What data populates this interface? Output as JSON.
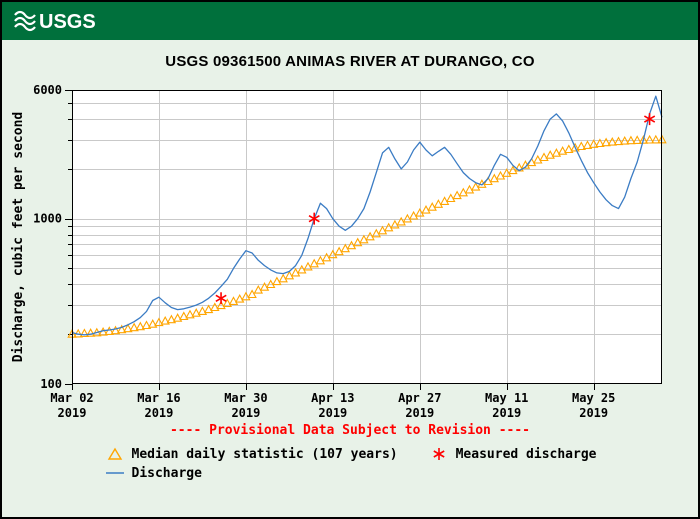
{
  "page": {
    "background_color": "#e8f2e8",
    "header": {
      "background_color": "#00703c",
      "logo_text": "USGS"
    },
    "title": "USGS 09361500 ANIMAS RIVER AT DURANGO, CO",
    "provisional_notice": "---- Provisional Data Subject to Revision ----",
    "provisional_color": "#ff0000"
  },
  "legend": {
    "items": [
      {
        "icon": "triangle",
        "color": "#ffa500",
        "label": "Median daily statistic (107 years)"
      },
      {
        "icon": "asterisk",
        "color": "#ff0000",
        "label": "Measured discharge"
      },
      {
        "icon": "line",
        "color": "#3b7cc4",
        "label": "Discharge"
      }
    ]
  },
  "chart_data": {
    "type": "line",
    "title": "USGS 09361500 ANIMAS RIVER AT DURANGO, CO",
    "ylabel": "Discharge, cubic feet per second",
    "xlabel": "",
    "y_scale": "log",
    "ylim": [
      100,
      6000
    ],
    "y_major_ticks": [
      100,
      1000,
      6000
    ],
    "y_minor_ticks": [
      200,
      300,
      400,
      500,
      600,
      700,
      800,
      900,
      2000,
      3000,
      4000,
      5000
    ],
    "x_range_days": [
      0,
      95
    ],
    "x_ticks": [
      {
        "day": 0,
        "label": "Mar 02",
        "year": "2019"
      },
      {
        "day": 14,
        "label": "Mar 16",
        "year": "2019"
      },
      {
        "day": 28,
        "label": "Mar 30",
        "year": "2019"
      },
      {
        "day": 42,
        "label": "Apr 13",
        "year": "2019"
      },
      {
        "day": 56,
        "label": "Apr 27",
        "year": "2019"
      },
      {
        "day": 70,
        "label": "May 11",
        "year": "2019"
      },
      {
        "day": 84,
        "label": "May 25",
        "year": "2019"
      }
    ],
    "grid_color": "#c9c9c9",
    "plot_background": "#ffffff",
    "series": [
      {
        "name": "Median daily statistic (107 years)",
        "type": "triangles",
        "color": "#ffa500",
        "values": [
          200,
          201,
          202,
          203,
          204,
          206,
          208,
          210,
          213,
          216,
          219,
          222,
          226,
          230,
          235,
          240,
          245,
          250,
          256,
          262,
          268,
          275,
          282,
          290,
          298,
          307,
          316,
          326,
          337,
          348,
          370,
          385,
          400,
          416,
          433,
          451,
          470,
          490,
          511,
          533,
          556,
          580,
          605,
          631,
          658,
          686,
          715,
          745,
          777,
          810,
          845,
          880,
          917,
          956,
          996,
          1038,
          1081,
          1126,
          1173,
          1222,
          1272,
          1324,
          1378,
          1434,
          1492,
          1552,
          1614,
          1678,
          1744,
          1812,
          1882,
          1954,
          2028,
          2104,
          2182,
          2262,
          2344,
          2420,
          2490,
          2560,
          2620,
          2680,
          2730,
          2775,
          2815,
          2850,
          2880,
          2905,
          2925,
          2945,
          2960,
          2972,
          2982,
          2990,
          2996,
          3000
        ]
      },
      {
        "name": "Discharge",
        "type": "line",
        "color": "#3b7cc4",
        "values": [
          205,
          200,
          198,
          200,
          205,
          210,
          212,
          215,
          220,
          228,
          238,
          252,
          275,
          320,
          335,
          310,
          290,
          282,
          285,
          292,
          300,
          312,
          330,
          355,
          390,
          430,
          500,
          570,
          640,
          620,
          560,
          520,
          490,
          470,
          465,
          480,
          520,
          600,
          760,
          1000,
          1240,
          1150,
          1000,
          900,
          850,
          900,
          1000,
          1150,
          1450,
          1900,
          2500,
          2700,
          2300,
          2000,
          2200,
          2600,
          2900,
          2600,
          2400,
          2550,
          2700,
          2450,
          2150,
          1900,
          1750,
          1650,
          1600,
          1750,
          2100,
          2450,
          2350,
          2100,
          1950,
          2050,
          2300,
          2750,
          3400,
          4000,
          4300,
          3900,
          3300,
          2700,
          2250,
          1900,
          1650,
          1450,
          1300,
          1200,
          1150,
          1350,
          1750,
          2200,
          3000,
          4300,
          5500,
          4100
        ]
      },
      {
        "name": "Measured discharge",
        "type": "asterisks",
        "color": "#ff0000",
        "points": [
          {
            "day": 24,
            "value": 330
          },
          {
            "day": 39,
            "value": 1000
          },
          {
            "day": 93,
            "value": 4000
          }
        ]
      }
    ]
  }
}
